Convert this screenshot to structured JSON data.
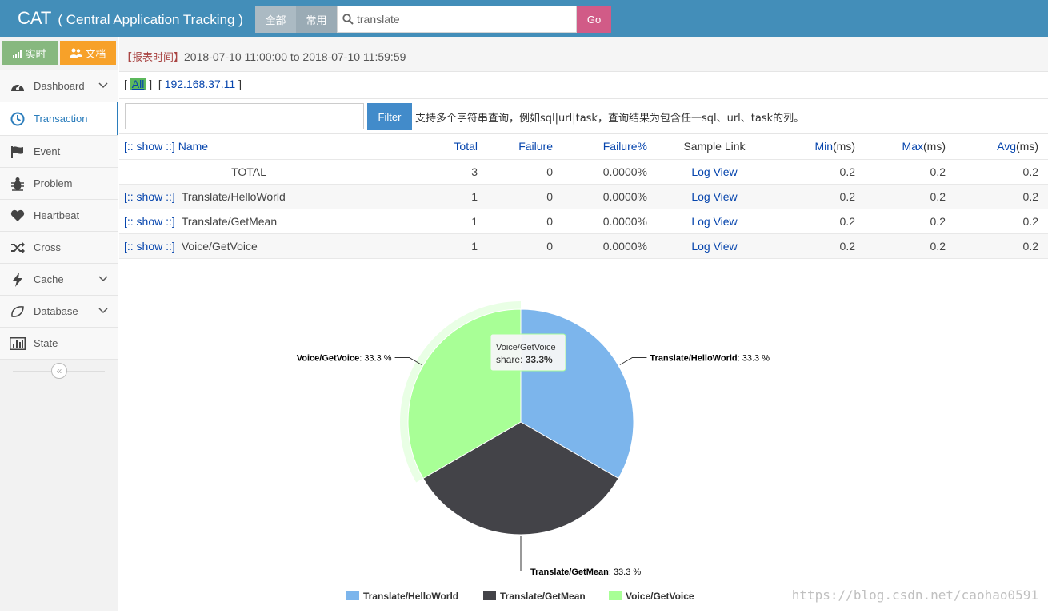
{
  "header": {
    "brand": "CAT",
    "subtitle": "( Central Application Tracking )",
    "scope_all": "全部",
    "scope_common": "常用",
    "search_value": "translate",
    "go_label": "Go"
  },
  "sidebar": {
    "shortcut_realtime": "实时",
    "shortcut_docs": "文档",
    "items": [
      {
        "label": "Dashboard"
      },
      {
        "label": "Transaction"
      },
      {
        "label": "Event"
      },
      {
        "label": "Problem"
      },
      {
        "label": "Heartbeat"
      },
      {
        "label": "Cross"
      },
      {
        "label": "Cache"
      },
      {
        "label": "Database"
      },
      {
        "label": "State"
      }
    ],
    "collapse_glyph": "«"
  },
  "report": {
    "label": "【报表时间】",
    "range": "2018-07-10 11:00:00 to 2018-07-10 11:59:59"
  },
  "ip_filter": {
    "all": "All",
    "ip": "192.168.37.11"
  },
  "filter": {
    "button": "Filter",
    "hint": "支持多个字符串查询，例如sql|url|task，查询结果为包含任一sql、url、task的列。"
  },
  "table": {
    "headers": {
      "show": "[:: show ::]",
      "name": "Name",
      "total": "Total",
      "failure": "Failure",
      "failure_pct": "Failure%",
      "sample": "Sample Link",
      "min": "Min",
      "max": "Max",
      "avg": "Avg",
      "unit": "(ms)"
    },
    "show_link": "[:: show ::]",
    "rows": [
      {
        "name": "TOTAL",
        "total": "3",
        "failure": "0",
        "failure_pct": "0.0000%",
        "sample": "Log View",
        "min": "0.2",
        "max": "0.2",
        "avg": "0.2"
      },
      {
        "name": "Translate/HelloWorld",
        "total": "1",
        "failure": "0",
        "failure_pct": "0.0000%",
        "sample": "Log View",
        "min": "0.2",
        "max": "0.2",
        "avg": "0.2"
      },
      {
        "name": "Translate/GetMean",
        "total": "1",
        "failure": "0",
        "failure_pct": "0.0000%",
        "sample": "Log View",
        "min": "0.2",
        "max": "0.2",
        "avg": "0.2"
      },
      {
        "name": "Voice/GetVoice",
        "total": "1",
        "failure": "0",
        "failure_pct": "0.0000%",
        "sample": "Log View",
        "min": "0.2",
        "max": "0.2",
        "avg": "0.2"
      }
    ]
  },
  "chart_data": {
    "type": "pie",
    "categories": [
      "Translate/HelloWorld",
      "Translate/GetMean",
      "Voice/GetVoice"
    ],
    "values": [
      33.3,
      33.3,
      33.3
    ],
    "colors": [
      "#7cb5ec",
      "#434348",
      "#a8ff96"
    ],
    "slice_labels": [
      "33.3 %",
      "33.3 %",
      "33.3 %"
    ],
    "legend_position": "bottom",
    "tooltip": {
      "series": "Voice/GetVoice",
      "label": "share:",
      "value": "33.3%"
    }
  },
  "watermark": "https://blog.csdn.net/caohao0591"
}
